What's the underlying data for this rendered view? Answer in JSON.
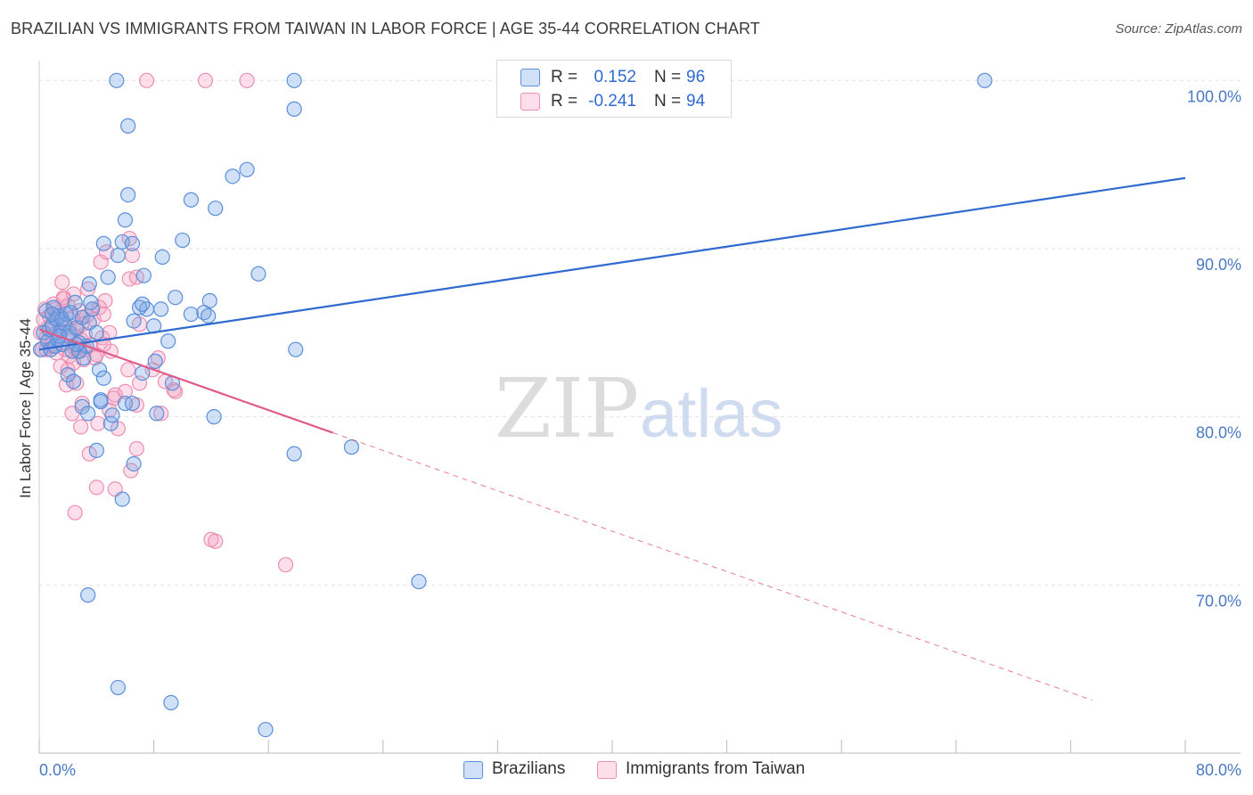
{
  "title": "BRAZILIAN VS IMMIGRANTS FROM TAIWAN IN LABOR FORCE | AGE 35-44 CORRELATION CHART",
  "source": "Source: ZipAtlas.com",
  "watermark": {
    "zip": "ZIP",
    "atlas": "atlas"
  },
  "colors": {
    "blue": "#2f6ad0",
    "blue_fill": "rgba(120,165,230,0.35)",
    "blue_stroke": "#5b8fd9",
    "pink": "#e05a8a",
    "pink_fill": "rgba(245,150,185,0.30)",
    "pink_stroke": "#ec8fb0",
    "tick_text": "#4a79c4",
    "grid": "#e2e2e2"
  },
  "legend": {
    "rows": [
      {
        "series": "Brazilians",
        "r_label": "R =",
        "r_value": "0.152",
        "n_label": "N =",
        "n_value": "96"
      },
      {
        "series": "Immigrants from Taiwan",
        "r_label": "R =",
        "r_value": "-0.241",
        "n_label": "N =",
        "n_value": "94"
      }
    ]
  },
  "chart_data": {
    "type": "scatter",
    "title": "BRAZILIAN VS IMMIGRANTS FROM TAIWAN IN LABOR FORCE | AGE 35-44 CORRELATION CHART",
    "xlabel": "",
    "ylabel": "In Labor Force | Age 35-44",
    "xlim": [
      0,
      80
    ],
    "ylim": [
      60,
      101.5
    ],
    "x_tick_labels": [
      "0.0%",
      "80.0%"
    ],
    "y_ticks": [
      70,
      80,
      90,
      100
    ],
    "y_tick_labels": [
      "70.0%",
      "80.0%",
      "90.0%",
      "100.0%"
    ],
    "grid": true,
    "legend_position": "bottom",
    "series": [
      {
        "name": "Brazilians",
        "color": "blue",
        "trend": {
          "x": [
            0,
            80
          ],
          "y": [
            84.0,
            94.2
          ],
          "dashed_after_x": null
        },
        "points": [
          [
            0.1,
            84.0
          ],
          [
            0.3,
            85.0
          ],
          [
            0.5,
            86.3
          ],
          [
            0.6,
            84.5
          ],
          [
            0.7,
            85.2
          ],
          [
            0.8,
            84.0
          ],
          [
            0.9,
            85.4
          ],
          [
            1.0,
            86.5
          ],
          [
            1.1,
            84.2
          ],
          [
            1.2,
            85.8
          ],
          [
            1.3,
            84.6
          ],
          [
            1.4,
            86.0
          ],
          [
            1.5,
            85.1
          ],
          [
            1.6,
            84.3
          ],
          [
            1.8,
            85.5
          ],
          [
            1.9,
            86.1
          ],
          [
            2.0,
            84.8
          ],
          [
            2.1,
            85.0
          ],
          [
            2.3,
            83.9
          ],
          [
            2.5,
            86.8
          ],
          [
            2.6,
            85.3
          ],
          [
            2.8,
            84.4
          ],
          [
            3.0,
            85.9
          ],
          [
            3.1,
            83.5
          ],
          [
            3.3,
            84.2
          ],
          [
            3.5,
            85.6
          ],
          [
            3.7,
            86.4
          ],
          [
            4.0,
            85.0
          ],
          [
            4.2,
            82.8
          ],
          [
            4.5,
            82.3
          ],
          [
            2.0,
            82.5
          ],
          [
            2.4,
            82.1
          ],
          [
            3.0,
            80.6
          ],
          [
            3.4,
            80.2
          ],
          [
            4.3,
            81.0
          ],
          [
            5.0,
            79.6
          ],
          [
            6.0,
            80.8
          ],
          [
            6.6,
            77.2
          ],
          [
            4.0,
            78.0
          ],
          [
            5.8,
            75.1
          ],
          [
            3.5,
            87.9
          ],
          [
            4.8,
            88.3
          ],
          [
            5.5,
            89.6
          ],
          [
            4.5,
            90.3
          ],
          [
            5.8,
            90.4
          ],
          [
            6.5,
            90.3
          ],
          [
            7.3,
            88.4
          ],
          [
            8.6,
            89.5
          ],
          [
            6.0,
            91.7
          ],
          [
            10.0,
            90.5
          ],
          [
            6.2,
            93.2
          ],
          [
            10.6,
            92.9
          ],
          [
            12.3,
            92.4
          ],
          [
            6.2,
            97.3
          ],
          [
            5.4,
            100.0
          ],
          [
            17.8,
            100.0
          ],
          [
            66.0,
            100.0
          ],
          [
            17.8,
            98.3
          ],
          [
            13.5,
            94.3
          ],
          [
            14.5,
            94.7
          ],
          [
            15.3,
            88.5
          ],
          [
            7.5,
            86.4
          ],
          [
            8.5,
            86.4
          ],
          [
            7.0,
            86.5
          ],
          [
            7.2,
            86.7
          ],
          [
            9.5,
            87.1
          ],
          [
            10.6,
            86.1
          ],
          [
            11.5,
            86.2
          ],
          [
            11.9,
            86.9
          ],
          [
            11.8,
            86.0
          ],
          [
            8.0,
            85.4
          ],
          [
            6.6,
            85.7
          ],
          [
            9.0,
            84.5
          ],
          [
            9.3,
            82.0
          ],
          [
            8.1,
            83.3
          ],
          [
            7.2,
            82.6
          ],
          [
            12.2,
            80.0
          ],
          [
            8.2,
            80.2
          ],
          [
            4.3,
            80.9
          ],
          [
            5.1,
            80.1
          ],
          [
            17.9,
            84.0
          ],
          [
            17.8,
            77.8
          ],
          [
            21.8,
            78.2
          ],
          [
            26.5,
            70.2
          ],
          [
            3.4,
            69.4
          ],
          [
            5.5,
            63.9
          ],
          [
            9.2,
            63.0
          ],
          [
            15.8,
            61.4
          ],
          [
            6.5,
            80.8
          ],
          [
            2.8,
            83.9
          ],
          [
            1.6,
            85.8
          ],
          [
            0.9,
            86.1
          ],
          [
            1.4,
            84.8
          ],
          [
            2.6,
            84.3
          ],
          [
            3.6,
            86.8
          ],
          [
            2.2,
            86.2
          ]
        ]
      },
      {
        "name": "Immigrants from Taiwan",
        "color": "pink",
        "trend": {
          "x": [
            0,
            80
          ],
          "y": [
            85.2,
            61.2
          ],
          "dashed_after_x": 20.5
        },
        "points": [
          [
            0.1,
            85.0
          ],
          [
            0.2,
            84.0
          ],
          [
            0.3,
            85.8
          ],
          [
            0.4,
            86.4
          ],
          [
            0.5,
            84.7
          ],
          [
            0.6,
            85.3
          ],
          [
            0.7,
            86.0
          ],
          [
            0.8,
            84.2
          ],
          [
            0.9,
            85.5
          ],
          [
            1.0,
            86.7
          ],
          [
            1.1,
            84.9
          ],
          [
            1.2,
            83.8
          ],
          [
            1.3,
            85.1
          ],
          [
            1.4,
            86.2
          ],
          [
            1.5,
            84.4
          ],
          [
            1.6,
            85.7
          ],
          [
            1.7,
            87.1
          ],
          [
            1.8,
            84.0
          ],
          [
            1.9,
            85.3
          ],
          [
            2.0,
            86.6
          ],
          [
            2.1,
            83.6
          ],
          [
            2.2,
            84.8
          ],
          [
            2.3,
            85.9
          ],
          [
            2.4,
            87.3
          ],
          [
            2.5,
            84.1
          ],
          [
            2.6,
            85.2
          ],
          [
            2.7,
            83.9
          ],
          [
            2.8,
            86.3
          ],
          [
            2.9,
            84.6
          ],
          [
            3.0,
            85.5
          ],
          [
            3.1,
            83.4
          ],
          [
            3.2,
            84.9
          ],
          [
            3.3,
            86.0
          ],
          [
            3.4,
            87.6
          ],
          [
            3.6,
            84.3
          ],
          [
            3.8,
            85.8
          ],
          [
            4.0,
            83.7
          ],
          [
            4.2,
            86.5
          ],
          [
            4.4,
            84.7
          ],
          [
            4.6,
            86.9
          ],
          [
            1.6,
            88.0
          ],
          [
            1.7,
            87.0
          ],
          [
            4.3,
            89.2
          ],
          [
            4.7,
            89.8
          ],
          [
            6.3,
            88.2
          ],
          [
            6.8,
            88.3
          ],
          [
            6.3,
            90.6
          ],
          [
            6.5,
            89.6
          ],
          [
            7.0,
            85.5
          ],
          [
            4.5,
            86.1
          ],
          [
            2.0,
            82.8
          ],
          [
            1.9,
            81.9
          ],
          [
            2.6,
            82.0
          ],
          [
            3.0,
            80.8
          ],
          [
            2.3,
            80.2
          ],
          [
            2.9,
            79.4
          ],
          [
            3.5,
            77.8
          ],
          [
            4.1,
            79.6
          ],
          [
            4.9,
            80.4
          ],
          [
            5.5,
            79.3
          ],
          [
            5.3,
            81.3
          ],
          [
            6.0,
            81.5
          ],
          [
            6.2,
            82.8
          ],
          [
            7.0,
            82.0
          ],
          [
            7.9,
            82.8
          ],
          [
            8.3,
            83.5
          ],
          [
            8.8,
            82.1
          ],
          [
            9.5,
            81.5
          ],
          [
            8.5,
            80.2
          ],
          [
            6.8,
            80.7
          ],
          [
            4.0,
            75.8
          ],
          [
            5.3,
            75.7
          ],
          [
            6.4,
            76.8
          ],
          [
            6.8,
            78.1
          ],
          [
            2.5,
            74.3
          ],
          [
            12.0,
            72.7
          ],
          [
            12.3,
            72.6
          ],
          [
            17.2,
            71.2
          ],
          [
            5.2,
            81.1
          ],
          [
            3.9,
            83.5
          ],
          [
            5.0,
            83.9
          ],
          [
            4.5,
            84.3
          ],
          [
            3.2,
            84.0
          ],
          [
            2.4,
            83.2
          ],
          [
            1.5,
            83.0
          ],
          [
            1.1,
            86.4
          ],
          [
            0.6,
            84.5
          ],
          [
            3.7,
            86.4
          ],
          [
            4.9,
            85.0
          ],
          [
            9.4,
            81.6
          ],
          [
            7.5,
            100.0
          ],
          [
            14.5,
            100.0
          ],
          [
            11.6,
            100.0
          ],
          [
            0.5,
            84.0
          ]
        ]
      }
    ]
  }
}
